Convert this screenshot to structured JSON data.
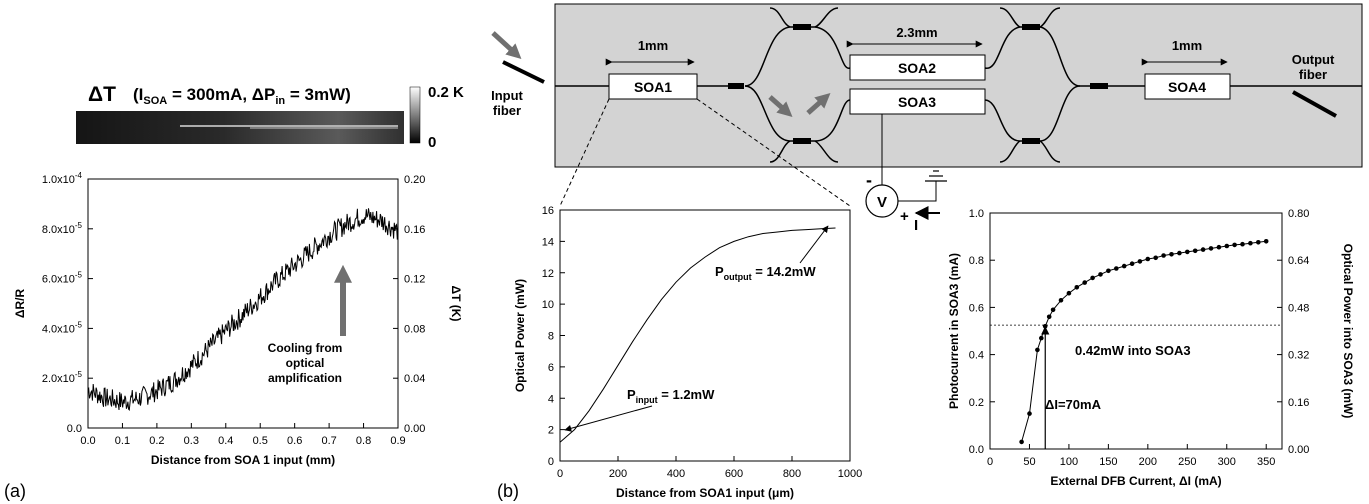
{
  "colors": {
    "arrow_gray": "#707070",
    "chip_fill": "#d3d3d3"
  },
  "panel_a": {
    "label": "(a)",
    "thermal": {
      "title": "ΔT",
      "condition_open": "(I",
      "condition_sub1": "SOA",
      "condition_mid": " = 300mA, ΔP",
      "condition_sub2": "in",
      "condition_close": " = 3mW)",
      "colorbar_max": "0.2 K",
      "colorbar_min": "0"
    },
    "annotation": [
      "Cooling from",
      "optical",
      "amplification"
    ]
  },
  "panel_b": {
    "label": "(b)",
    "schematic": {
      "input_fiber": [
        "Input",
        "fiber"
      ],
      "output_fiber": [
        "Output",
        "fiber"
      ],
      "dim_soa1": "1mm",
      "dim_soa23": "2.3mm",
      "dim_soa4": "1mm",
      "soa1": "SOA1",
      "soa2": "SOA2",
      "soa3": "SOA3",
      "soa4": "SOA4",
      "volt_symbol": "V",
      "minus": "-",
      "plus": "+",
      "current": "I"
    },
    "power_annotations": {
      "output": "P",
      "output_sub": "output",
      "output_val": " = 14.2mW",
      "input": "P",
      "input_sub": "input",
      "input_val": " = 1.2mW"
    },
    "photo_annotations": {
      "threshold": "0.42mW into SOA3",
      "delta": "ΔI=70mA"
    }
  },
  "chart_data": [
    {
      "type": "line",
      "id": "reflectance",
      "xlabel": "Distance from SOA 1 input (mm)",
      "ylabel": "ΔR/R",
      "ylabel_right": "ΔT (K)",
      "xlim": [
        0,
        0.9
      ],
      "ylim": [
        0,
        0.0001
      ],
      "ylim_right": [
        0,
        0.2
      ],
      "x_ticks": [
        "0.0",
        "0.1",
        "0.2",
        "0.3",
        "0.4",
        "0.5",
        "0.6",
        "0.7",
        "0.8",
        "0.9"
      ],
      "y_ticks": [
        {
          "m": "0.0",
          "e": ""
        },
        {
          "m": "2.0x10",
          "e": "-5"
        },
        {
          "m": "4.0x10",
          "e": "-5"
        },
        {
          "m": "6.0x10",
          "e": "-5"
        },
        {
          "m": "8.0x10",
          "e": "-5"
        },
        {
          "m": "1.0x10",
          "e": "-4"
        }
      ],
      "y_ticks_right": [
        "0.00",
        "0.04",
        "0.08",
        "0.12",
        "0.16",
        "0.20"
      ],
      "x": [
        0.0,
        0.05,
        0.1,
        0.15,
        0.2,
        0.25,
        0.3,
        0.35,
        0.4,
        0.45,
        0.5,
        0.55,
        0.6,
        0.65,
        0.7,
        0.75,
        0.8,
        0.85,
        0.9
      ],
      "y": [
        1.55e-05,
        1.2e-05,
        1.05e-05,
        1.2e-05,
        1.5e-05,
        1.9e-05,
        2.5e-05,
        3.2e-05,
        3.9e-05,
        4.55e-05,
        5.25e-05,
        5.95e-05,
        6.55e-05,
        7.15e-05,
        7.75e-05,
        8.2e-05,
        8.55e-05,
        8.35e-05,
        7.9e-05
      ]
    },
    {
      "type": "line",
      "id": "optical_power",
      "xlabel": "Distance from SOA1 input (μm)",
      "ylabel": "Optical Power (mW)",
      "xlim": [
        0,
        1000
      ],
      "ylim": [
        0,
        16
      ],
      "x_ticks": [
        "0",
        "200",
        "400",
        "600",
        "800",
        "1000"
      ],
      "y_ticks": [
        "0",
        "2",
        "4",
        "6",
        "8",
        "10",
        "12",
        "14",
        "16"
      ],
      "x": [
        0,
        50,
        100,
        150,
        200,
        250,
        300,
        350,
        400,
        450,
        500,
        550,
        600,
        650,
        700,
        750,
        800,
        850,
        900,
        950
      ],
      "y": [
        1.2,
        2.0,
        3.2,
        4.6,
        6.1,
        7.6,
        9.0,
        10.3,
        11.4,
        12.3,
        13.0,
        13.6,
        14.0,
        14.3,
        14.5,
        14.6,
        14.7,
        14.75,
        14.8,
        14.85
      ]
    },
    {
      "type": "scatter",
      "id": "photocurrent",
      "xlabel": "External DFB Current, ΔI (mA)",
      "ylabel": "Photocurrent in SOA3 (mA)",
      "ylabel_right": "Optical Power into SOA3 (mW)",
      "xlim": [
        0,
        370
      ],
      "ylim": [
        0,
        1.0
      ],
      "ylim_right": [
        0,
        0.8
      ],
      "x_ticks": [
        "0",
        "50",
        "100",
        "150",
        "200",
        "250",
        "300",
        "350"
      ],
      "y_ticks": [
        "0.0",
        "0.2",
        "0.4",
        "0.6",
        "0.8",
        "1.0"
      ],
      "y_ticks_right": [
        "0.00",
        "0.16",
        "0.32",
        "0.48",
        "0.64",
        "0.80"
      ],
      "x": [
        40,
        50,
        60,
        65,
        70,
        75,
        80,
        90,
        100,
        110,
        120,
        130,
        140,
        150,
        160,
        170,
        180,
        190,
        200,
        210,
        220,
        230,
        240,
        250,
        260,
        270,
        280,
        290,
        300,
        310,
        320,
        330,
        340,
        350
      ],
      "y": [
        0.03,
        0.15,
        0.42,
        0.47,
        0.52,
        0.56,
        0.59,
        0.63,
        0.66,
        0.685,
        0.705,
        0.725,
        0.74,
        0.755,
        0.765,
        0.775,
        0.785,
        0.795,
        0.805,
        0.81,
        0.82,
        0.825,
        0.83,
        0.835,
        0.84,
        0.845,
        0.85,
        0.855,
        0.86,
        0.865,
        0.868,
        0.872,
        0.876,
        0.88
      ],
      "threshold_y": 0.525,
      "marker_x": 70
    }
  ]
}
